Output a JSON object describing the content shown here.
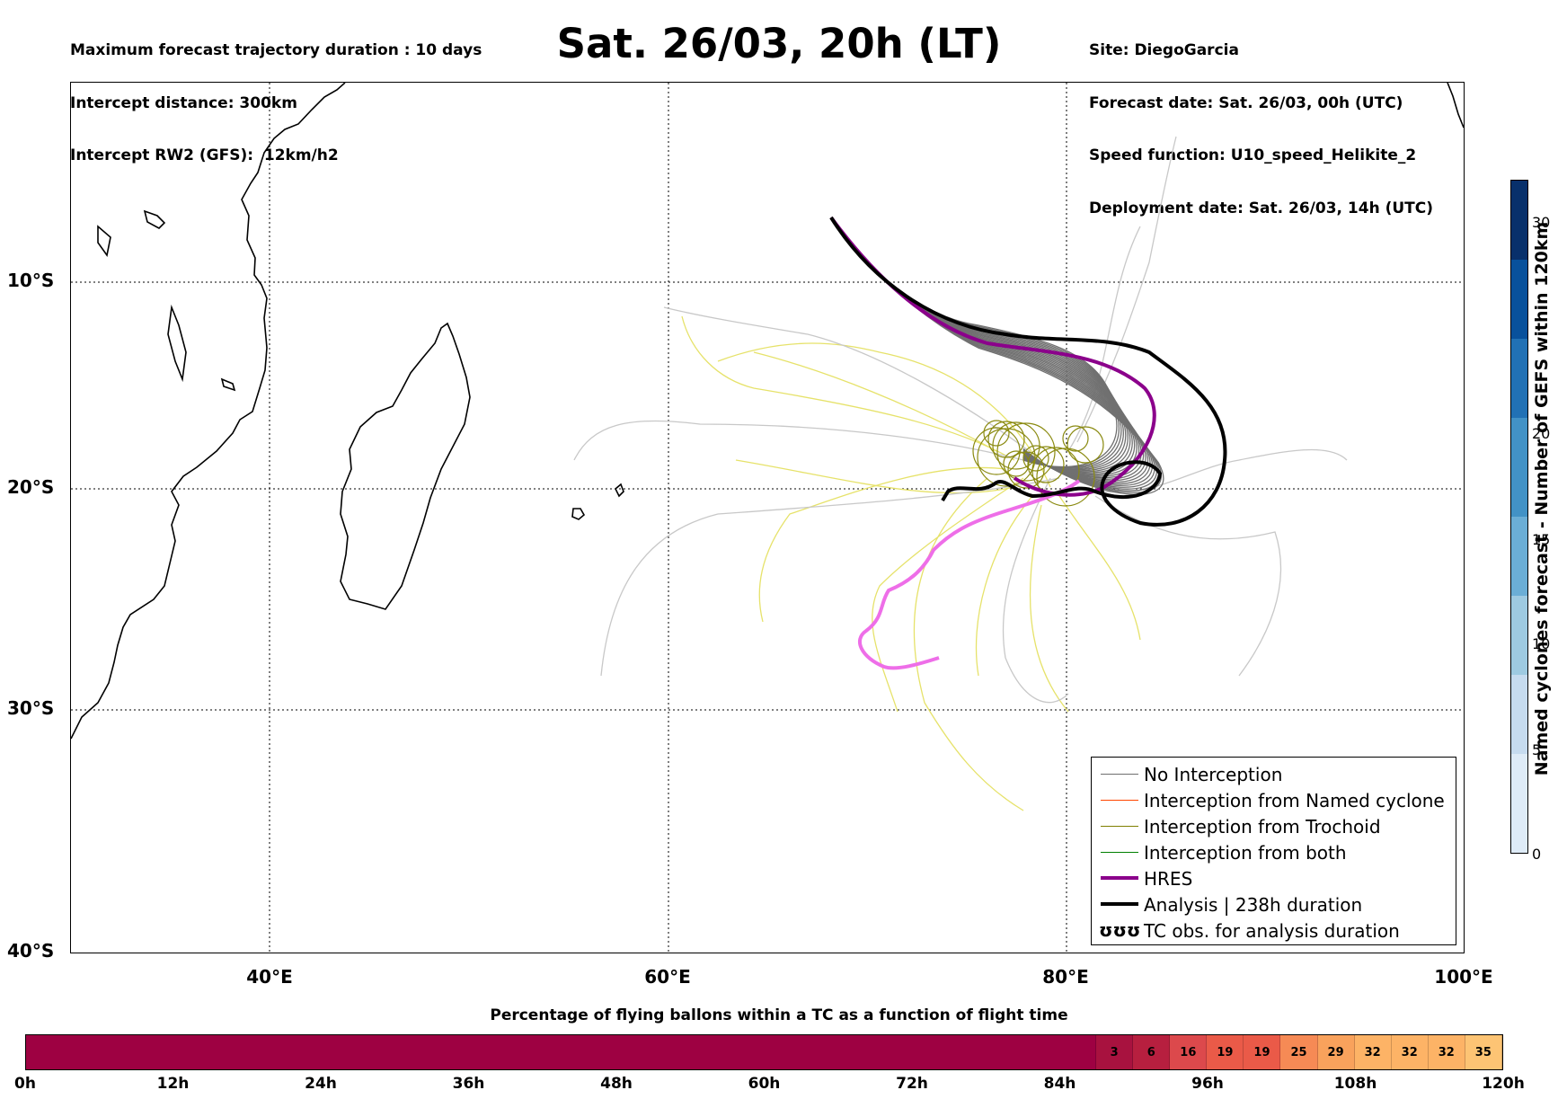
{
  "header": {
    "title": "Sat. 26/03, 20h (LT)",
    "left_lines": [
      "Maximum forecast trajectory duration : 10 days",
      "Intercept distance: 300km",
      "Intercept RW2 (GFS):  12km/h2"
    ],
    "right_lines": [
      "Site: DiegoGarcia",
      "Forecast date: Sat. 26/03, 00h (UTC)",
      "Speed function: U10_speed_Helikite_2",
      "Deployment date: Sat. 26/03, 14h (UTC)"
    ]
  },
  "map": {
    "lon_range": [
      30,
      100
    ],
    "lat_range": [
      -40,
      -0.5
    ],
    "lon_labels": [
      "40°E",
      "60°E",
      "80°E",
      "100°E"
    ],
    "lat_labels": [
      "10°S",
      "20°S",
      "30°S",
      "40°S"
    ]
  },
  "legend": {
    "items": [
      {
        "label": "No Interception",
        "color": "#6f6f6f"
      },
      {
        "label": "Interception from Named cyclone",
        "color": "#ff4500"
      },
      {
        "label": "Interception from Trochoid",
        "color": "#7f7f00"
      },
      {
        "label": "Interception from both",
        "color": "#008000"
      },
      {
        "label": "HRES",
        "color": "#8b008b"
      },
      {
        "label": "Analysis | 238h duration",
        "color": "#000000"
      },
      {
        "label": "TC obs. for analysis duration",
        "symbol": "ʊʊʊ"
      }
    ]
  },
  "gefs_colorbar": {
    "label": "Named cyclones forecast - Number of GEFS within 120km",
    "ticks": [
      "0",
      "5",
      "10",
      "15",
      "20",
      "30"
    ],
    "tick_values": [
      0,
      5,
      10,
      15,
      20,
      30
    ],
    "max": 33,
    "colors": [
      "#deebf7",
      "#c6dbef",
      "#9ecae1",
      "#6baed6",
      "#4292c6",
      "#2171b5",
      "#08519c",
      "#08306b"
    ]
  },
  "flight_bar": {
    "title": "Percentage of flying ballons within a TC as a function of flight time",
    "ticks": [
      "0h",
      "12h",
      "24h",
      "36h",
      "48h",
      "60h",
      "72h",
      "84h",
      "96h",
      "108h",
      "120h"
    ],
    "cells": [
      {
        "from_h": 0,
        "to_h": 87,
        "label": "",
        "color": "#9e0142"
      },
      {
        "from_h": 87,
        "to_h": 90,
        "label": "3",
        "color": "#a8123f"
      },
      {
        "from_h": 90,
        "to_h": 93,
        "label": "6",
        "color": "#b71f3f"
      },
      {
        "from_h": 93,
        "to_h": 96,
        "label": "16",
        "color": "#dc494c"
      },
      {
        "from_h": 96,
        "to_h": 99,
        "label": "19",
        "color": "#ea5a48"
      },
      {
        "from_h": 99,
        "to_h": 102,
        "label": "19",
        "color": "#ea5a48"
      },
      {
        "from_h": 102,
        "to_h": 105,
        "label": "25",
        "color": "#f68a55"
      },
      {
        "from_h": 105,
        "to_h": 108,
        "label": "29",
        "color": "#f9a25c"
      },
      {
        "from_h": 108,
        "to_h": 111,
        "label": "32",
        "color": "#fdb366"
      },
      {
        "from_h": 111,
        "to_h": 114,
        "label": "32",
        "color": "#fdb366"
      },
      {
        "from_h": 114,
        "to_h": 117,
        "label": "32",
        "color": "#fdb366"
      },
      {
        "from_h": 117,
        "to_h": 120,
        "label": "35",
        "color": "#fdc474"
      }
    ]
  }
}
